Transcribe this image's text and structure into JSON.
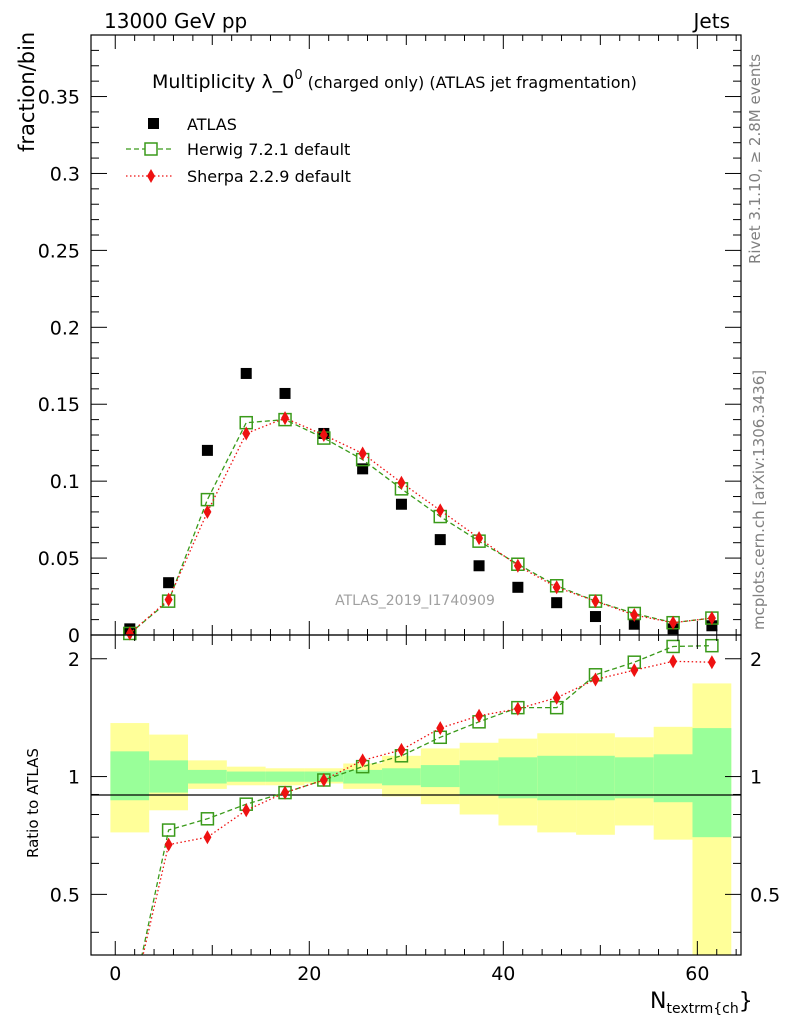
{
  "header": {
    "left": "13000 GeV pp",
    "right": "Jets"
  },
  "side_labels": {
    "rivet": "Rivet 3.1.10, ≥ 2.8M events",
    "mcplots": "mcplots.cern.ch [arXiv:1306.3436]"
  },
  "chart_data": {
    "type": "scatter",
    "title": "Multiplicity λ_0",
    "title_sup": "0",
    "title_suffix": "(charged only) (ATLAS jet fragmentation)",
    "watermark": "ATLAS_2019_I1740909",
    "xlabel_main": "N",
    "xlabel_sub": "textrm{ch",
    "xlabel_brace": "}",
    "ylabel": "fraction/bin",
    "ratio_ylabel": "Ratio to ATLAS",
    "xlim": [
      -2.5,
      64.5
    ],
    "ylim": [
      0,
      0.39
    ],
    "ratio_ylim": [
      0.35,
      2.3
    ],
    "x_ticks": [
      "0",
      "20",
      "40",
      "60"
    ],
    "y_ticks": [
      "0",
      "0.05",
      "0.1",
      "0.15",
      "0.2",
      "0.25",
      "0.3",
      "0.35"
    ],
    "ratio_ticks": [
      "0.5",
      "1",
      "2"
    ],
    "grid": false,
    "legend_position": "top-left",
    "bin_edges": [
      -0.5,
      3.5,
      7.5,
      11.5,
      15.5,
      19.5,
      23.5,
      27.5,
      31.5,
      35.5,
      39.5,
      43.5,
      47.5,
      51.5,
      55.5,
      59.5,
      63.5
    ],
    "x": [
      1.5,
      5.5,
      9.5,
      13.5,
      17.5,
      21.5,
      25.5,
      29.5,
      33.5,
      37.5,
      41.5,
      45.5,
      49.5,
      53.5,
      57.5,
      61.5
    ],
    "series": [
      {
        "name": "ATLAS",
        "color": "#000000",
        "marker": "square-filled",
        "values": [
          0.004,
          0.034,
          0.12,
          0.17,
          0.157,
          0.131,
          0.108,
          0.085,
          0.062,
          0.045,
          0.031,
          0.021,
          0.012,
          0.007,
          0.004,
          0.006
        ]
      },
      {
        "name": "Herwig 7.2.1 default",
        "color": "#3a9a1a",
        "marker": "square-open",
        "line": "dashed",
        "values": [
          0.001,
          0.022,
          0.088,
          0.138,
          0.14,
          0.128,
          0.114,
          0.095,
          0.077,
          0.061,
          0.046,
          0.032,
          0.022,
          0.014,
          0.008,
          0.011
        ]
      },
      {
        "name": "Sherpa 2.2.9 default",
        "color": "#ee1111",
        "marker": "diamond-filled",
        "line": "dotted",
        "values": [
          0.001,
          0.023,
          0.08,
          0.131,
          0.141,
          0.13,
          0.118,
          0.099,
          0.081,
          0.063,
          0.045,
          0.031,
          0.022,
          0.013,
          0.008,
          0.011
        ]
      }
    ],
    "ratio": {
      "herwig": [
        0.25,
        0.73,
        0.78,
        0.85,
        0.91,
        0.98,
        1.06,
        1.13,
        1.26,
        1.38,
        1.5,
        1.5,
        1.82,
        1.96,
        2.15,
        2.16
      ],
      "sherpa": [
        0.25,
        0.67,
        0.7,
        0.82,
        0.91,
        0.98,
        1.1,
        1.17,
        1.33,
        1.43,
        1.49,
        1.59,
        1.77,
        1.87,
        1.97,
        1.96
      ],
      "band_green_lo": [
        0.87,
        0.91,
        0.96,
        0.97,
        0.97,
        0.97,
        0.96,
        0.95,
        0.94,
        0.9,
        0.88,
        0.87,
        0.87,
        0.88,
        0.86,
        0.7
      ],
      "band_green_hi": [
        1.16,
        1.1,
        1.04,
        1.03,
        1.03,
        1.03,
        1.04,
        1.05,
        1.07,
        1.1,
        1.12,
        1.13,
        1.13,
        1.12,
        1.14,
        1.33
      ],
      "band_yellow_lo": [
        0.72,
        0.82,
        0.93,
        0.95,
        0.95,
        0.96,
        0.93,
        0.89,
        0.85,
        0.8,
        0.75,
        0.72,
        0.71,
        0.75,
        0.69,
        0.3
      ],
      "band_yellow_hi": [
        1.37,
        1.28,
        1.1,
        1.06,
        1.05,
        1.05,
        1.08,
        1.13,
        1.18,
        1.22,
        1.25,
        1.29,
        1.29,
        1.26,
        1.34,
        1.73
      ]
    }
  }
}
